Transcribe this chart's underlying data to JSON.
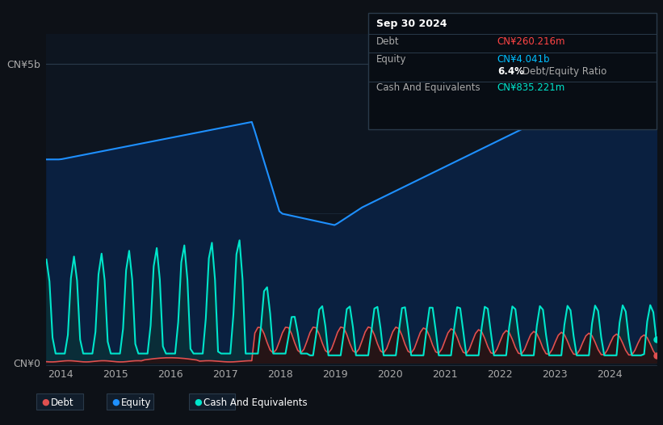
{
  "background_color": "#0d1117",
  "plot_bg_color": "#0d1520",
  "ylabel_top": "CN¥5b",
  "ylabel_bottom": "CN¥0",
  "x_ticks": [
    2014,
    2015,
    2016,
    2017,
    2018,
    2019,
    2020,
    2021,
    2022,
    2023,
    2024
  ],
  "equity_color": "#1e90ff",
  "debt_color": "#e05050",
  "cash_color": "#00e5cc",
  "equity_fill_color": "#0a2040",
  "cash_fill_color": "#0a3535",
  "debt_fill_color": "#2a1010",
  "info_box": {
    "date": "Sep 30 2024",
    "debt_label": "Debt",
    "debt_value": "CN¥260.216m",
    "debt_color": "#ff4444",
    "equity_label": "Equity",
    "equity_value": "CN¥4.041b",
    "equity_color": "#00bfff",
    "ratio_value": "6.4%",
    "ratio_label": "Debt/Equity Ratio",
    "cash_label": "Cash And Equivalents",
    "cash_value": "CN¥835.221m",
    "cash_color": "#00e5cc",
    "bg_color": "#080d14",
    "border_color": "#2a3a4a"
  },
  "legend": [
    {
      "label": "Debt",
      "color": "#e05050"
    },
    {
      "label": "Equity",
      "color": "#1e90ff"
    },
    {
      "label": "Cash And Equivalents",
      "color": "#00e5cc"
    }
  ]
}
